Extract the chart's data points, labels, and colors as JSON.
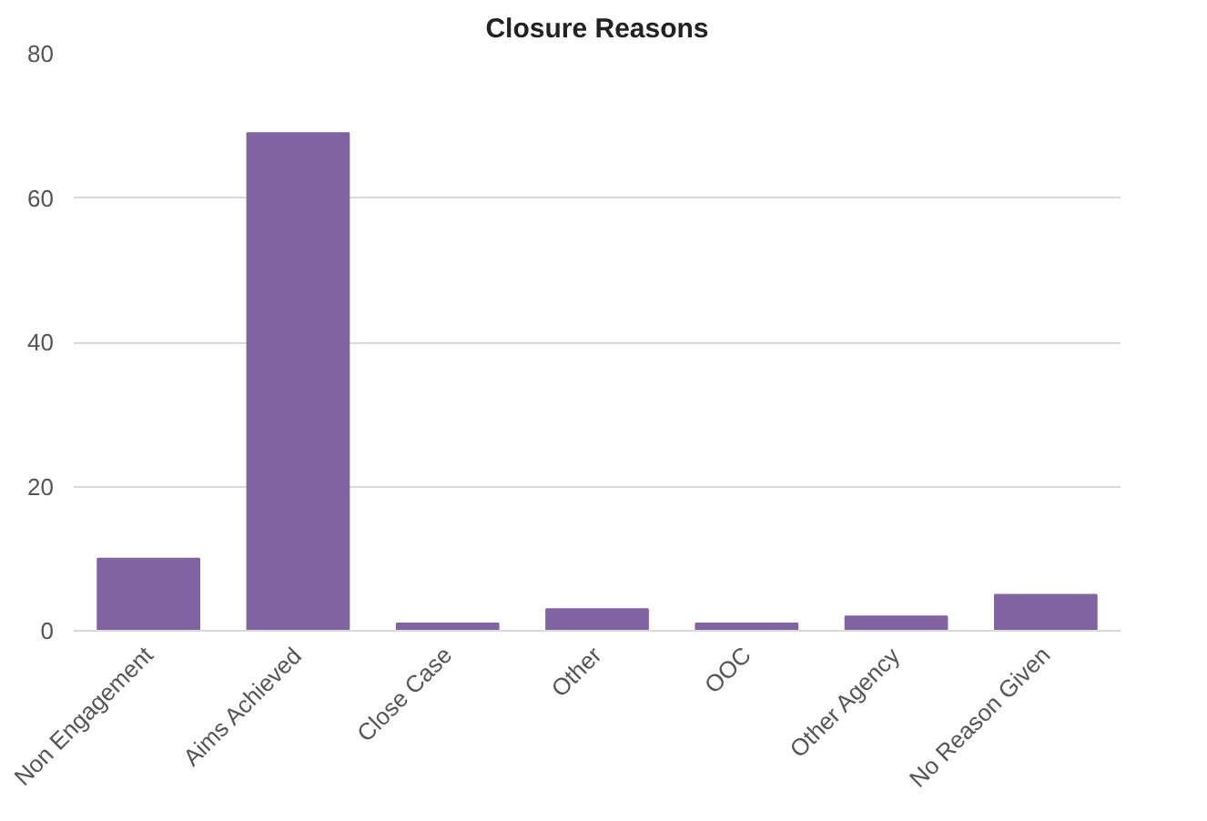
{
  "chart_data": {
    "type": "bar",
    "title": "Closure Reasons",
    "categories": [
      "Non Engagement",
      "Aims Achieved",
      "Close Case",
      "Other",
      "OOC",
      "Other Agency",
      "No Reason Given"
    ],
    "values": [
      10,
      69,
      1,
      3,
      1,
      2,
      5
    ],
    "color": "#8064a2",
    "ylim": [
      0,
      80
    ],
    "yticks": [
      0,
      20,
      40,
      60,
      80
    ],
    "grid": "y"
  }
}
